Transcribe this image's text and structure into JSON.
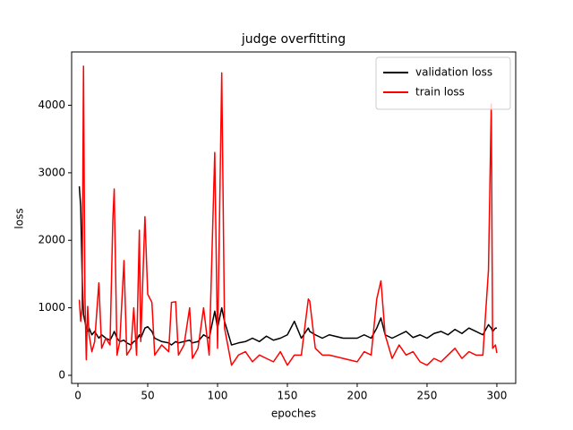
{
  "chart_data": {
    "type": "line",
    "title": "judge overfitting",
    "x_label": "epoches",
    "y_label": "loss",
    "x": [
      1,
      2,
      3,
      4,
      5,
      6,
      7,
      8,
      10,
      12,
      15,
      17,
      20,
      23,
      25,
      26,
      28,
      30,
      33,
      35,
      38,
      40,
      42,
      44,
      45,
      48,
      50,
      53,
      55,
      60,
      65,
      67,
      70,
      72,
      76,
      80,
      82,
      86,
      90,
      94,
      98,
      100,
      103,
      105,
      110,
      115,
      120,
      125,
      130,
      135,
      140,
      145,
      150,
      155,
      160,
      165,
      166,
      170,
      175,
      180,
      190,
      200,
      205,
      210,
      214,
      217,
      220,
      225,
      230,
      235,
      240,
      245,
      250,
      255,
      260,
      265,
      270,
      275,
      280,
      285,
      290,
      294,
      296,
      297,
      299,
      300
    ],
    "series": [
      {
        "name": "validation loss",
        "color": "#000000",
        "values": [
          2800,
          2500,
          1500,
          900,
          800,
          700,
          650,
          700,
          600,
          650,
          550,
          600,
          550,
          520,
          600,
          650,
          550,
          500,
          520,
          480,
          450,
          500,
          520,
          600,
          550,
          700,
          720,
          650,
          550,
          500,
          480,
          450,
          500,
          480,
          500,
          520,
          480,
          500,
          600,
          550,
          950,
          700,
          1000,
          800,
          450,
          480,
          500,
          550,
          500,
          580,
          520,
          550,
          600,
          800,
          550,
          700,
          650,
          600,
          550,
          600,
          550,
          550,
          600,
          550,
          700,
          850,
          600,
          550,
          600,
          650,
          560,
          600,
          550,
          620,
          650,
          600,
          680,
          620,
          700,
          650,
          600,
          750,
          700,
          650,
          700,
          700
        ]
      },
      {
        "name": "train loss",
        "color": "#ff0000",
        "values": [
          1120,
          800,
          1000,
          4580,
          1200,
          230,
          1020,
          600,
          350,
          500,
          1370,
          400,
          550,
          450,
          2300,
          2760,
          300,
          500,
          1700,
          300,
          400,
          1000,
          300,
          2150,
          500,
          2350,
          1200,
          1080,
          300,
          450,
          350,
          1080,
          1090,
          300,
          450,
          1000,
          250,
          400,
          1000,
          300,
          3300,
          400,
          4480,
          700,
          150,
          300,
          350,
          200,
          300,
          250,
          200,
          350,
          150,
          300,
          300,
          1130,
          1100,
          400,
          300,
          300,
          250,
          200,
          350,
          300,
          1130,
          1400,
          600,
          250,
          450,
          300,
          350,
          200,
          150,
          250,
          200,
          300,
          400,
          250,
          350,
          300,
          300,
          1560,
          4020,
          400,
          450,
          330
        ]
      }
    ],
    "xlim": [
      -4.5,
      313.5
    ],
    "ylim": [
      -120,
      4790
    ],
    "xticks": [
      0,
      50,
      100,
      150,
      200,
      250,
      300
    ],
    "yticks": [
      0,
      1000,
      2000,
      3000,
      4000
    ],
    "legend": "upper right"
  }
}
